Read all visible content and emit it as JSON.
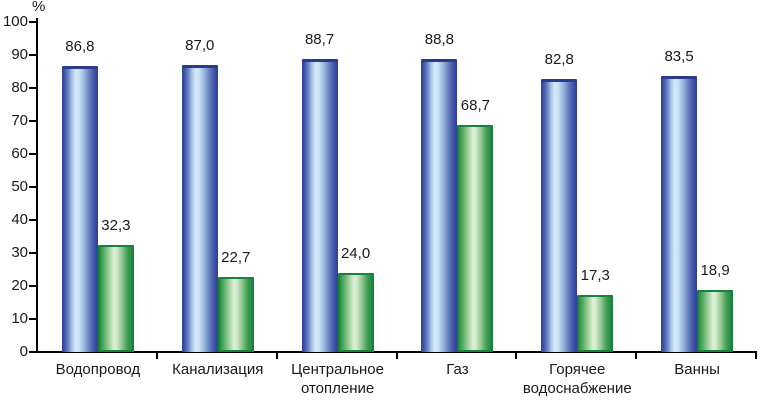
{
  "chart_data": {
    "type": "bar",
    "title": "",
    "ylabel": "%",
    "xlabel": "",
    "categories": [
      "Водопровод",
      "Канализация",
      "Центральное отопление",
      "Газ",
      "Горячее водоснабжение",
      "Ванны"
    ],
    "series": [
      {
        "name": "series-blue",
        "color": "#3A4DA0",
        "values": [
          86.8,
          87.0,
          88.7,
          88.8,
          82.8,
          83.5
        ]
      },
      {
        "name": "series-green",
        "color": "#2E9449",
        "values": [
          32.3,
          22.7,
          24.0,
          68.7,
          17.3,
          18.9
        ]
      }
    ],
    "value_labels": {
      "series-blue": [
        "86,8",
        "87,0",
        "88,7",
        "88,8",
        "82,8",
        "83,5"
      ],
      "series-green": [
        "32,3",
        "22,7",
        "24,0",
        "68,7",
        "17,3",
        "18,9"
      ]
    },
    "ylim": [
      0,
      100
    ],
    "y_ticks": [
      0,
      10,
      20,
      30,
      40,
      50,
      60,
      70,
      80,
      90,
      100
    ],
    "y_tick_labels": [
      "0",
      "10",
      "20",
      "30",
      "40",
      "50",
      "60",
      "70",
      "80",
      "90",
      "100"
    ],
    "decimal_separator": ",",
    "grid": false,
    "legend": "none",
    "axis_color": "#000000",
    "text_color": "#1a1a1a"
  }
}
